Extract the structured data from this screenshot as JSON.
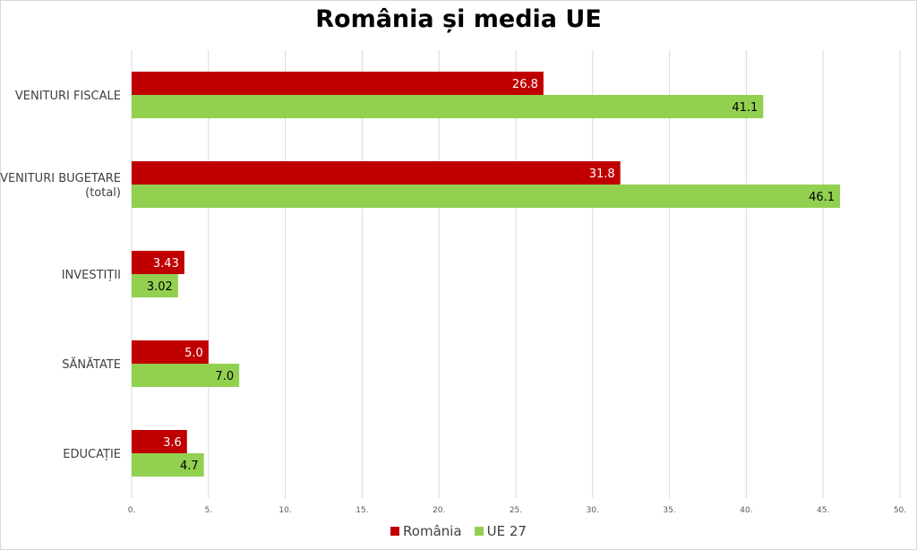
{
  "chart_data": {
    "type": "bar",
    "orientation": "horizontal",
    "title": "România și media UE",
    "categories": [
      "VENITURI FISCALE",
      "VENITURI BUGETARE\n(total)",
      "INVESTIȚII",
      "SĂNĂTATE",
      "EDUCAȚIE"
    ],
    "series": [
      {
        "name": "România",
        "color": "#c00000",
        "values": [
          26.8,
          31.8,
          3.43,
          5.0,
          3.6
        ],
        "labels": [
          "26.8",
          "31.8",
          "3.43",
          "5.0",
          "3.6"
        ],
        "label_color": "#ffffff"
      },
      {
        "name": "UE 27",
        "color": "#92d050",
        "values": [
          41.1,
          46.1,
          3.02,
          7.0,
          4.7
        ],
        "labels": [
          "41.1",
          "46.1",
          "3.02",
          "7.0",
          "4.7"
        ],
        "label_color": "#000000"
      }
    ],
    "xlim": [
      0,
      50
    ],
    "xticks": [
      0,
      5,
      10,
      15,
      20,
      25,
      30,
      35,
      40,
      45,
      50
    ],
    "xtick_labels": [
      "0.",
      "5.",
      "10.",
      "15.",
      "20.",
      "25.",
      "30.",
      "35.",
      "40.",
      "45.",
      "50."
    ],
    "grid": true,
    "legend_position": "bottom",
    "gridline_color": "#d9d9d9"
  }
}
